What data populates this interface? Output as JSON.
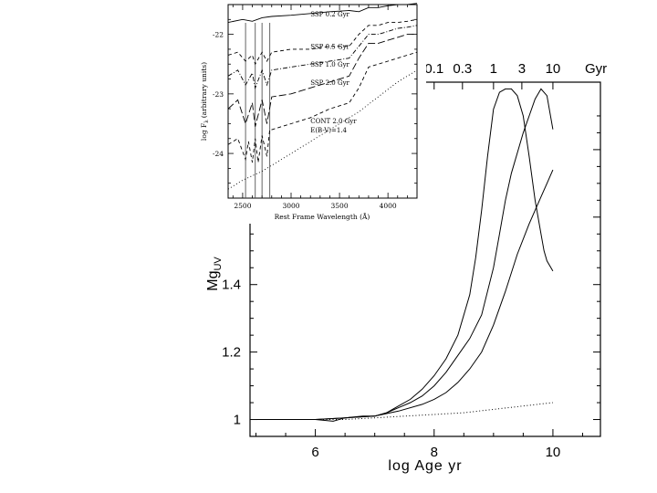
{
  "main_chart": {
    "type": "line",
    "title": "",
    "xlabel": "log Age yr",
    "ylabel": "Mg",
    "ylabel_sub": "UV",
    "xlim": [
      4.9,
      10.8
    ],
    "ylim": [
      0.95,
      2.0
    ],
    "x_ticks": [
      "6",
      "8",
      "10"
    ],
    "y_ticks": [
      "1",
      "1.2",
      "1.4"
    ],
    "top_ticks": [
      {
        "label": "0.1",
        "x": 8.0
      },
      {
        "label": "0.3",
        "x": 8.477
      },
      {
        "label": "1",
        "x": 9.0
      },
      {
        "label": "3",
        "x": 9.477
      },
      {
        "label": "10",
        "x": 10.0
      }
    ],
    "top_unit": "Gyr",
    "series": [
      {
        "style": "solid",
        "x": [
          5.0,
          5.5,
          6.0,
          6.3,
          6.5,
          6.8,
          7.0,
          7.2,
          7.4,
          7.6,
          7.8,
          8.0,
          8.2,
          8.4,
          8.6,
          8.7,
          8.8,
          8.9,
          9.0,
          9.1,
          9.2,
          9.3,
          9.4,
          9.5,
          9.6,
          9.7,
          9.8,
          9.85,
          9.9,
          10.0
        ],
        "y": [
          1.0,
          1.0,
          1.0,
          0.995,
          1.005,
          1.01,
          1.01,
          1.02,
          1.04,
          1.06,
          1.09,
          1.13,
          1.18,
          1.25,
          1.37,
          1.48,
          1.62,
          1.78,
          1.92,
          1.97,
          1.98,
          1.98,
          1.96,
          1.9,
          1.78,
          1.65,
          1.55,
          1.5,
          1.47,
          1.44
        ]
      },
      {
        "style": "solid",
        "x": [
          5.0,
          6.0,
          6.5,
          7.0,
          7.2,
          7.4,
          7.6,
          7.8,
          8.0,
          8.2,
          8.4,
          8.6,
          8.8,
          9.0,
          9.1,
          9.2,
          9.3,
          9.4,
          9.5,
          9.6,
          9.7,
          9.8,
          9.9,
          10.0
        ],
        "y": [
          1.0,
          1.0,
          1.005,
          1.01,
          1.02,
          1.035,
          1.05,
          1.07,
          1.1,
          1.14,
          1.19,
          1.24,
          1.31,
          1.45,
          1.55,
          1.65,
          1.73,
          1.79,
          1.85,
          1.9,
          1.95,
          1.98,
          1.96,
          1.86
        ]
      },
      {
        "style": "solid",
        "x": [
          5.0,
          6.0,
          6.5,
          7.0,
          7.4,
          7.8,
          8.0,
          8.2,
          8.4,
          8.6,
          8.8,
          9.0,
          9.2,
          9.4,
          9.6,
          9.8,
          9.9,
          10.0
        ],
        "y": [
          1.0,
          1.0,
          1.005,
          1.01,
          1.025,
          1.045,
          1.06,
          1.08,
          1.11,
          1.15,
          1.2,
          1.28,
          1.38,
          1.49,
          1.58,
          1.66,
          1.7,
          1.74
        ]
      },
      {
        "style": "dotted",
        "x": [
          5.0,
          6.0,
          6.5,
          7.0,
          7.5,
          8.0,
          8.5,
          9.0,
          9.5,
          10.0
        ],
        "y": [
          1.0,
          1.0,
          1.0,
          1.005,
          1.01,
          1.015,
          1.02,
          1.03,
          1.04,
          1.05
        ]
      }
    ]
  },
  "inset_chart": {
    "type": "line",
    "ylabel": "log F",
    "ylabel_sub": "λ",
    "ylabel_unit": "(arbitrary units)",
    "xlabel": "Rest Frame Wavelength (Å)",
    "xlim": [
      2350,
      4300
    ],
    "ylim": [
      -24.75,
      -21.5
    ],
    "x_ticks": [
      "2500",
      "3000",
      "3500",
      "4000"
    ],
    "y_ticks": [
      "-22",
      "-23",
      "-24"
    ],
    "vlines": [
      2530,
      2630,
      2700,
      2780
    ],
    "labels": [
      {
        "text": "SSP 0.2 Gyr",
        "x": 3200,
        "y": -21.65
      },
      {
        "text": "SSP 0.5 Gyr",
        "x": 3200,
        "y": -22.2
      },
      {
        "text": "SSP 1.0 Gyr",
        "x": 3200,
        "y": -22.5
      },
      {
        "text": "SSP 2.0 Gyr",
        "x": 3200,
        "y": -22.8
      },
      {
        "text": "CONT 2.0 Gyr",
        "x": 3200,
        "y": -23.45
      },
      {
        "text": "E(B-V)=1.4",
        "x": 3200,
        "y": -23.6
      }
    ],
    "series": [
      {
        "style": "solid",
        "x": [
          2350,
          2500,
          2600,
          2700,
          2800,
          3000,
          3200,
          3400,
          3600,
          3700,
          3800,
          3900,
          4000,
          4100,
          4200,
          4300
        ],
        "y": [
          -21.8,
          -21.75,
          -21.78,
          -21.72,
          -21.7,
          -21.68,
          -21.65,
          -21.62,
          -21.6,
          -21.62,
          -21.55,
          -21.55,
          -21.52,
          -21.5,
          -21.5,
          -21.48
        ]
      },
      {
        "style": "dashed",
        "x": [
          2350,
          2450,
          2530,
          2600,
          2630,
          2700,
          2750,
          2800,
          3000,
          3200,
          3400,
          3600,
          3700,
          3800,
          3900,
          4000,
          4100,
          4200,
          4300
        ],
        "y": [
          -22.35,
          -22.3,
          -22.45,
          -22.35,
          -22.5,
          -22.3,
          -22.45,
          -22.3,
          -22.25,
          -22.25,
          -22.2,
          -22.2,
          -22.0,
          -21.85,
          -21.85,
          -21.8,
          -21.8,
          -21.78,
          -21.75
        ]
      },
      {
        "style": "dashdot",
        "x": [
          2350,
          2450,
          2530,
          2600,
          2630,
          2700,
          2750,
          2800,
          3000,
          3200,
          3400,
          3600,
          3700,
          3800,
          3900,
          4000,
          4100,
          4200,
          4300
        ],
        "y": [
          -22.7,
          -22.6,
          -22.85,
          -22.65,
          -22.9,
          -22.6,
          -22.85,
          -22.6,
          -22.55,
          -22.5,
          -22.45,
          -22.4,
          -22.2,
          -22.0,
          -22.0,
          -21.95,
          -21.9,
          -21.88,
          -21.85
        ]
      },
      {
        "style": "longdash",
        "x": [
          2350,
          2450,
          2530,
          2600,
          2630,
          2700,
          2750,
          2800,
          3000,
          3200,
          3400,
          3600,
          3700,
          3800,
          3900,
          4000,
          4100,
          4200,
          4300
        ],
        "y": [
          -23.25,
          -23.1,
          -23.5,
          -23.15,
          -23.55,
          -23.1,
          -23.5,
          -23.05,
          -23.0,
          -22.9,
          -22.8,
          -22.7,
          -22.4,
          -22.15,
          -22.15,
          -22.1,
          -22.05,
          -22.0,
          -22.0
        ]
      },
      {
        "style": "dashed",
        "x": [
          2350,
          2450,
          2530,
          2560,
          2600,
          2630,
          2660,
          2700,
          2750,
          2780,
          2800,
          3000,
          3200,
          3400,
          3600,
          3700,
          3800,
          3900,
          4000,
          4100,
          4200,
          4300
        ],
        "y": [
          -23.85,
          -23.75,
          -24.1,
          -23.8,
          -24.15,
          -23.75,
          -24.15,
          -23.7,
          -24.05,
          -23.6,
          -23.6,
          -23.5,
          -23.4,
          -23.25,
          -23.15,
          -22.9,
          -22.55,
          -22.5,
          -22.45,
          -22.4,
          -22.35,
          -22.3
        ]
      },
      {
        "style": "dotted",
        "x": [
          2350,
          2500,
          2700,
          2900,
          3100,
          3300,
          3500,
          3700,
          3900,
          4100,
          4300
        ],
        "y": [
          -24.6,
          -24.45,
          -24.3,
          -24.1,
          -23.9,
          -23.7,
          -23.5,
          -23.3,
          -23.05,
          -22.8,
          -22.6
        ]
      }
    ]
  }
}
